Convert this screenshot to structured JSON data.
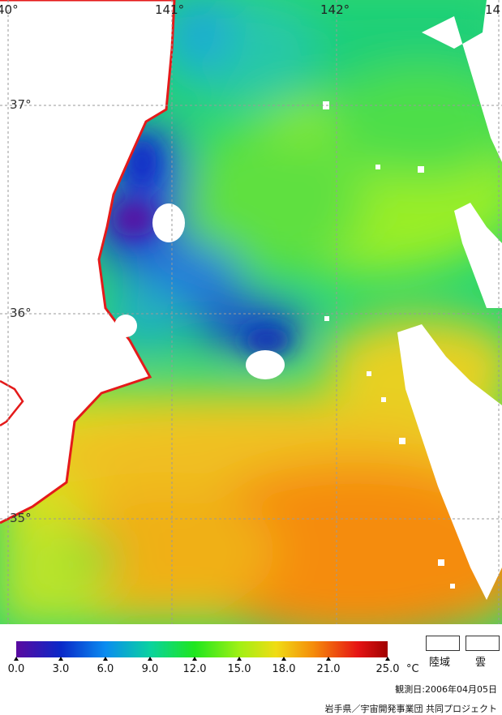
{
  "grid": {
    "lon_labels": [
      "40°",
      "141°",
      "142°",
      "14"
    ],
    "lat_labels": [
      "37°",
      "36°",
      "35°"
    ]
  },
  "colorscale": {
    "ticks": [
      "0.0",
      "3.0",
      "6.0",
      "9.0",
      "12.0",
      "15.0",
      "18.0",
      "21.0",
      "25.0"
    ],
    "unit": "°C",
    "colors": [
      "#5a0aa0",
      "#0a28c8",
      "#0a8cf0",
      "#0ad2a0",
      "#1ee61e",
      "#a0f014",
      "#f0dc14",
      "#f58c0a",
      "#e61414",
      "#a00000"
    ]
  },
  "key": {
    "land_label": "陸域",
    "cloud_label": "雲"
  },
  "observation_date": "観測日:2006年04月05日",
  "credit": "岩手県／宇宙開発事業団 共同プロジェクト",
  "colors": {
    "coastline": "#e41a1a",
    "grid": "#9a9a9a",
    "land": "#ffffff",
    "cloud": "#ffffff"
  }
}
